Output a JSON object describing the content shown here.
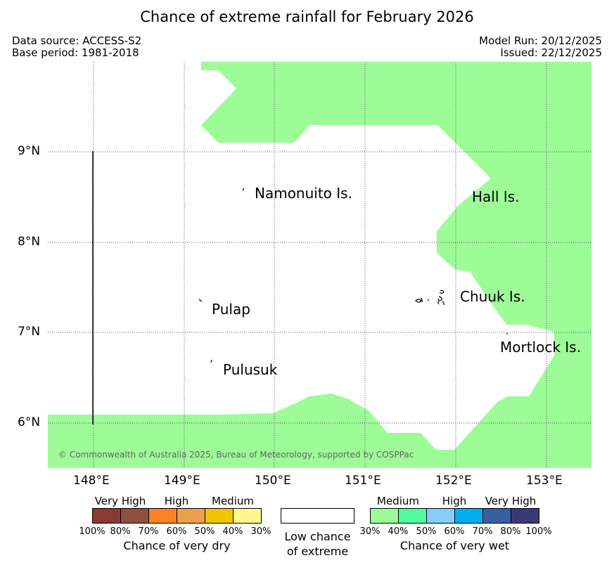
{
  "title": "Chance of extreme rainfall for February 2026",
  "source": {
    "data_source": "Data source: ACCESS-S2",
    "base_period": "Base period: 1981-2018",
    "model_run": "Model Run: 20/12/2025",
    "issued": "Issued: 22/12/2025"
  },
  "axes": {
    "lat_labels": [
      "9°N",
      "8°N",
      "7°N",
      "6°N"
    ],
    "lon_labels": [
      "148°E",
      "149°E",
      "150°E",
      "151°E",
      "152°E",
      "153°E"
    ]
  },
  "places": [
    {
      "name": "Namonuito Is."
    },
    {
      "name": "Hall Is."
    },
    {
      "name": "Chuuk Is."
    },
    {
      "name": "Pulap"
    },
    {
      "name": "Mortlock Is."
    },
    {
      "name": "Pulusuk"
    }
  ],
  "copyright": "© Commonwealth of Australia 2025, Bureau of Meteorology, supported by COSPPac",
  "legend": {
    "dry": {
      "categories": [
        "Very High",
        "High",
        "Medium"
      ],
      "ticks": [
        "100%",
        "80%",
        "70%",
        "60%",
        "50%",
        "40%",
        "30%"
      ],
      "colors": [
        "#8b3a33",
        "#8f4f3e",
        "#ff8127",
        "#ee9f4c",
        "#f0c400",
        "#fff68f"
      ],
      "title": "Chance of very dry"
    },
    "low": {
      "line1": "Low chance",
      "line2": "of extreme"
    },
    "wet": {
      "categories": [
        "Medium",
        "High",
        "Very High"
      ],
      "ticks": [
        "30%",
        "40%",
        "50%",
        "60%",
        "70%",
        "80%",
        "100%"
      ],
      "colors": [
        "#9dfb98",
        "#52fba0",
        "#87cdf9",
        "#00aeef",
        "#3a5f9e",
        "#3b3b73"
      ],
      "title": "Chance of very wet"
    },
    "map_fill_color": "#9dfb98"
  }
}
